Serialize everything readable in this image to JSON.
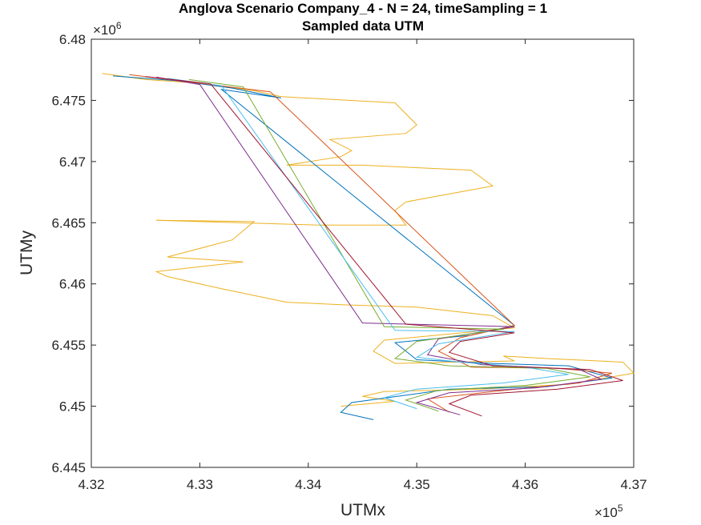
{
  "chart_data": {
    "type": "line",
    "title": "Anglova Scenario Company_4 - N = 24, timeSampling = 1",
    "subtitle": "Sampled data UTM",
    "xlabel": "UTMx",
    "ylabel": "UTMy",
    "x_multiplier": {
      "base": "×10",
      "exponent": "5"
    },
    "y_multiplier": {
      "base": "×10",
      "exponent": "6"
    },
    "xlim": [
      432000,
      437000
    ],
    "ylim": [
      6445000,
      6480000
    ],
    "x_ticks": [
      432000,
      433000,
      434000,
      435000,
      436000,
      437000
    ],
    "x_tick_labels": [
      "4.32",
      "4.33",
      "4.34",
      "4.35",
      "4.36",
      "4.37"
    ],
    "y_ticks": [
      6445000,
      6450000,
      6455000,
      6460000,
      6465000,
      6470000,
      6475000,
      6480000
    ],
    "y_tick_labels": [
      "6.445",
      "6.45",
      "6.455",
      "6.46",
      "6.465",
      "6.47",
      "6.475",
      "6.48"
    ],
    "grid": false,
    "legend": "none",
    "colors": [
      "#0072BD",
      "#D95319",
      "#EDB120",
      "#7E2F8E",
      "#77AC30",
      "#4DBEEE",
      "#A2142F"
    ],
    "series": [
      {
        "color": "#EDB120",
        "x": [
          432100,
          432500,
          433000,
          433500,
          433750,
          434800,
          435000,
          434900,
          434200,
          434400,
          434300,
          433800,
          434500,
          435500,
          435700,
          434900,
          434800,
          434900,
          434100,
          432600,
          433500,
          433300,
          432700,
          433400,
          433000,
          432600,
          432700,
          433200,
          433800,
          434300,
          435000,
          435700,
          435900,
          434700,
          434600,
          434800,
          435900,
          435800,
          436200,
          436900,
          437000,
          436400,
          435600,
          434700,
          434500,
          434800,
          434300
        ],
        "y": [
          6477200,
          6476700,
          6476400,
          6475800,
          6475300,
          6474800,
          6473000,
          6472300,
          6471800,
          6470900,
          6470400,
          6469700,
          6469700,
          6469300,
          6468000,
          6466700,
          6466000,
          6464800,
          6464800,
          6465200,
          6465100,
          6463600,
          6462200,
          6461800,
          6461400,
          6461000,
          6460600,
          6459600,
          6458500,
          6458300,
          6458100,
          6457400,
          6456400,
          6455400,
          6454500,
          6453500,
          6453700,
          6454100,
          6453900,
          6453600,
          6452700,
          6451800,
          6451400,
          6451200,
          6450800,
          6450400,
          6450000
        ]
      },
      {
        "color": "#0072BD",
        "x": [
          432200,
          432800,
          433300,
          433750,
          433200,
          435900,
          435500,
          434800,
          435000,
          435700,
          436400,
          436800,
          436200,
          435300,
          434900,
          434400,
          434300,
          434600
        ],
        "y": [
          6477000,
          6476600,
          6476000,
          6475200,
          6475900,
          6456600,
          6455800,
          6455200,
          6453800,
          6453500,
          6453300,
          6452300,
          6451600,
          6451400,
          6450900,
          6450300,
          6449500,
          6448900
        ]
      },
      {
        "color": "#D95319",
        "x": [
          432350,
          432900,
          433650,
          435900,
          435400,
          435200,
          435500,
          436300,
          436800,
          436500,
          435700,
          435100,
          435300
        ],
        "y": [
          6477100,
          6476500,
          6475700,
          6456600,
          6455600,
          6454500,
          6453200,
          6453100,
          6452700,
          6451900,
          6451200,
          6450600,
          6449500
        ]
      },
      {
        "color": "#7E2F8E",
        "x": [
          432600,
          433000,
          434500,
          435900,
          435200,
          435100,
          435600,
          436500,
          436700,
          436100,
          435300,
          435000,
          435400
        ],
        "y": [
          6476900,
          6476300,
          6456800,
          6456500,
          6455500,
          6454200,
          6453400,
          6453000,
          6452200,
          6451500,
          6451100,
          6450300,
          6449300
        ]
      },
      {
        "color": "#77AC30",
        "x": [
          432900,
          433400,
          434700,
          435800,
          435000,
          434800,
          435300,
          436200,
          436600,
          436000,
          435200,
          434900,
          435200
        ],
        "y": [
          6476700,
          6476100,
          6456500,
          6456300,
          6455300,
          6453900,
          6453300,
          6453100,
          6452400,
          6451700,
          6451300,
          6450500,
          6449600
        ]
      },
      {
        "color": "#4DBEEE",
        "x": [
          432700,
          433200,
          434800,
          435900,
          435200,
          435000,
          435400,
          436000,
          436400,
          435800,
          435000,
          434700,
          435000
        ],
        "y": [
          6476800,
          6476200,
          6456200,
          6456100,
          6455100,
          6454000,
          6453600,
          6453200,
          6452600,
          6451900,
          6451400,
          6450700,
          6449800
        ]
      },
      {
        "color": "#A2142F",
        "x": [
          432500,
          433100,
          434900,
          435900,
          435400,
          435300,
          435700,
          436600,
          436900,
          436300,
          435500,
          435300,
          435600
        ],
        "y": [
          6476950,
          6476350,
          6456700,
          6456000,
          6455300,
          6454400,
          6453300,
          6453000,
          6452100,
          6451400,
          6450900,
          6450200,
          6449200
        ]
      }
    ]
  }
}
